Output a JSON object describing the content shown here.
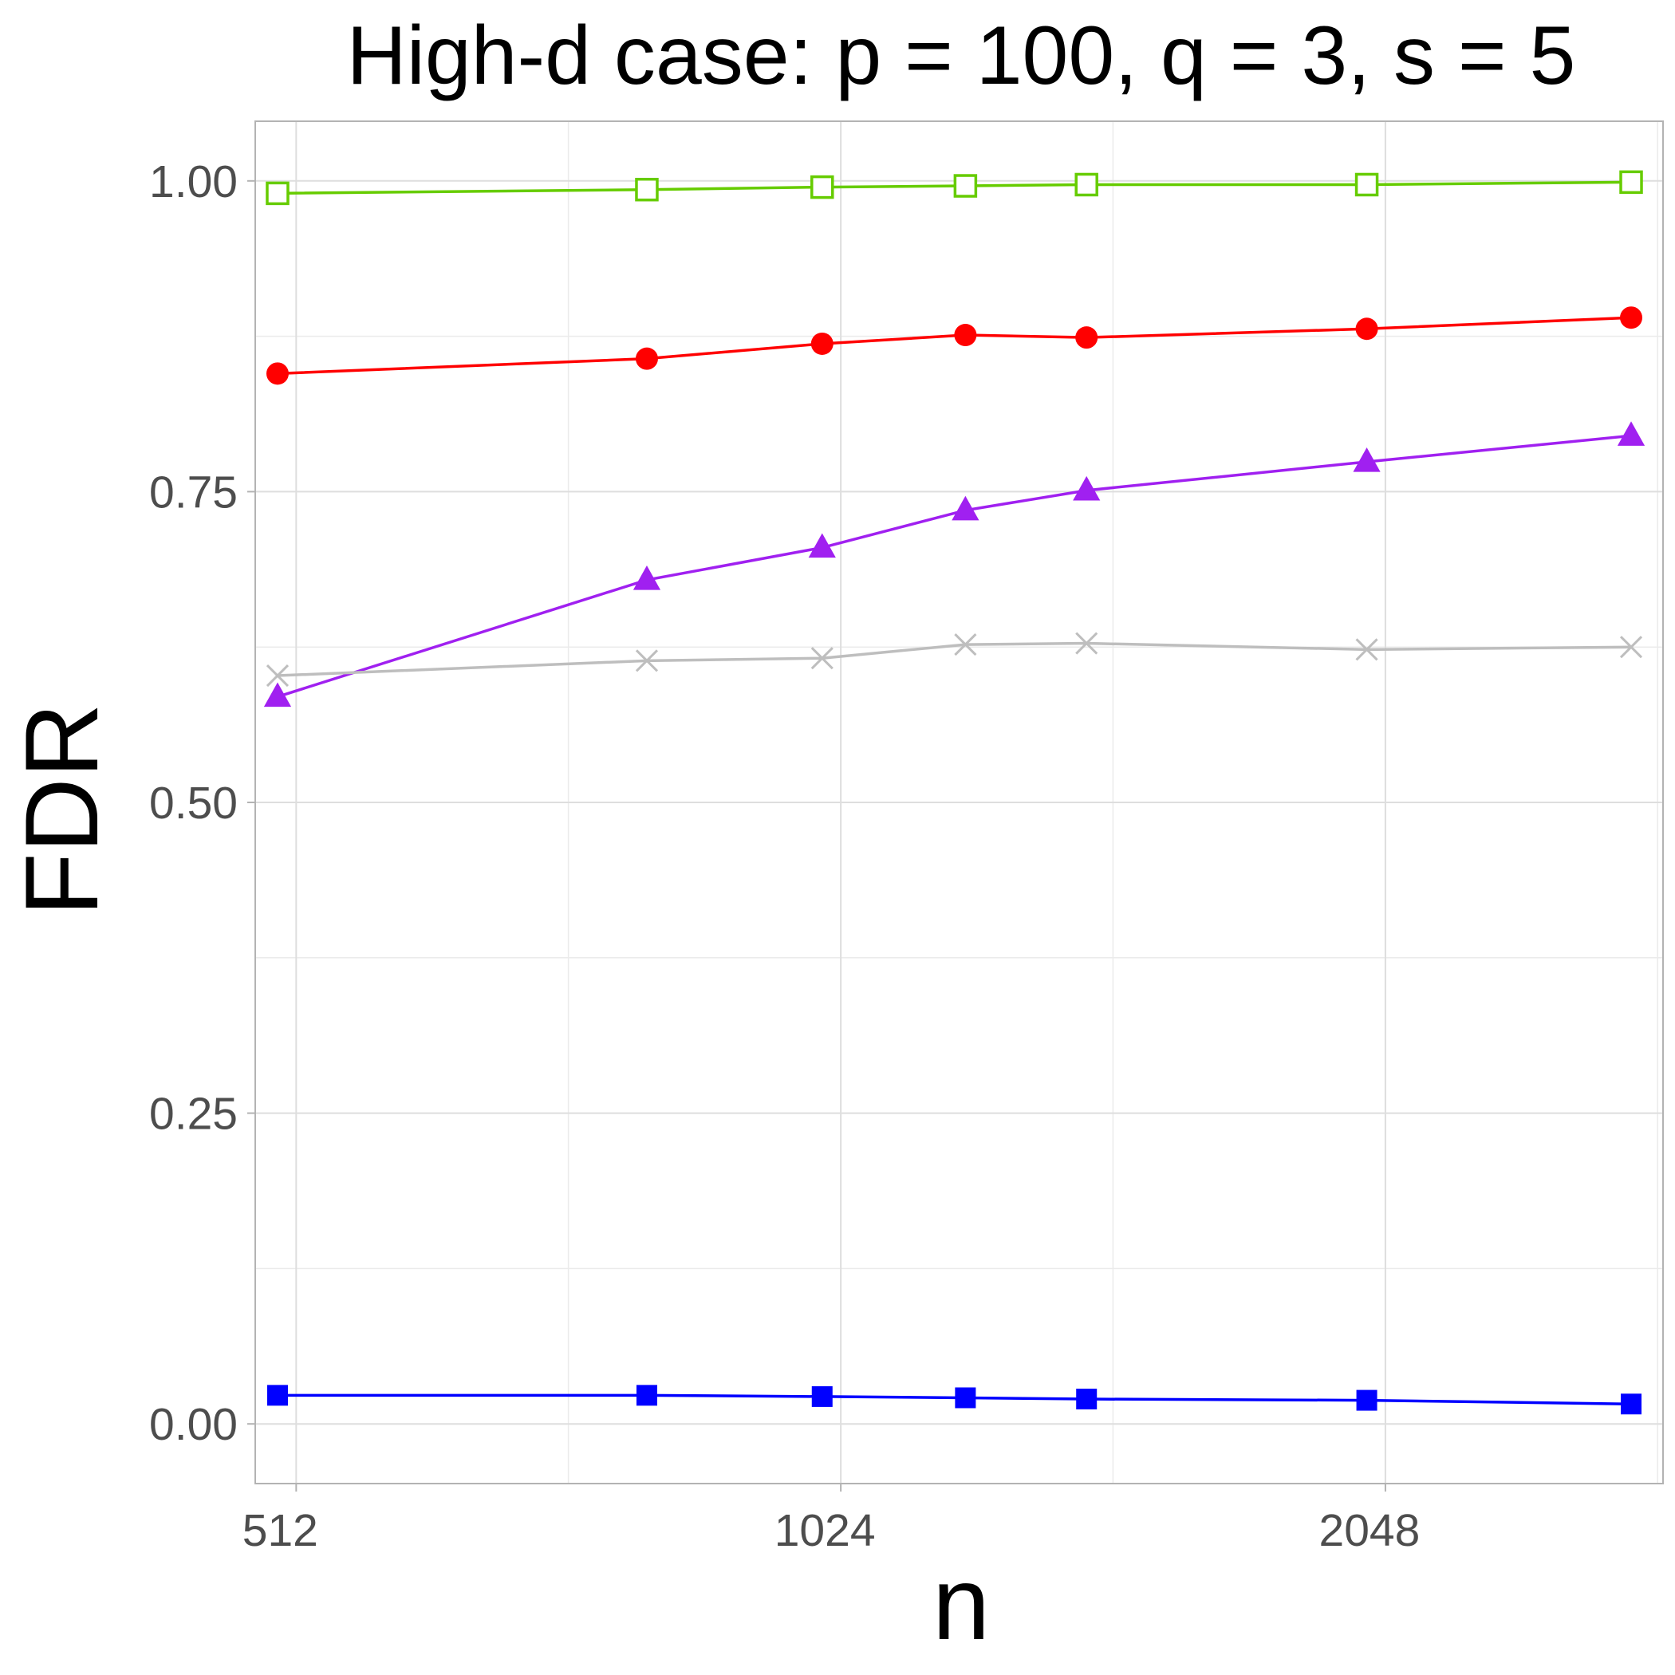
{
  "chart_data": {
    "type": "line",
    "title": "High-d case: p = 100, q = 3, s = 5",
    "xlabel": "n",
    "ylabel": "FDR",
    "x_scale": "log2",
    "x": [
      500,
      800,
      1000,
      1200,
      1400,
      2000,
      2800
    ],
    "xlim": [
      486,
      2916
    ],
    "x_ticks": [
      512,
      1024,
      2048
    ],
    "x_tick_labels": [
      "512",
      "1024",
      "2048"
    ],
    "x_minor_ticks": [
      724,
      1448,
      2896
    ],
    "ylim": [
      -0.048,
      1.048
    ],
    "y_ticks": [
      0,
      0.25,
      0.5,
      0.75,
      1.0
    ],
    "y_tick_labels": [
      "0.00",
      "0.25",
      "0.50",
      "0.75",
      "1.00"
    ],
    "y_minor_ticks": [
      0.125,
      0.375,
      0.625,
      0.875
    ],
    "grid": true,
    "legend": "none",
    "series": [
      {
        "color": "#66cc00",
        "marker": "open-square",
        "values": [
          0.99,
          0.993,
          0.995,
          0.996,
          0.997,
          0.997,
          0.999
        ]
      },
      {
        "color": "#ff0000",
        "marker": "filled-circle",
        "values": [
          0.845,
          0.857,
          0.869,
          0.876,
          0.874,
          0.881,
          0.89
        ]
      },
      {
        "color": "#a020f0",
        "marker": "filled-triangle",
        "values": [
          0.585,
          0.679,
          0.705,
          0.735,
          0.751,
          0.774,
          0.795
        ]
      },
      {
        "color": "#bebebe",
        "marker": "cross",
        "values": [
          0.602,
          0.614,
          0.616,
          0.627,
          0.628,
          0.623,
          0.625
        ]
      },
      {
        "color": "#0000ff",
        "marker": "filled-square",
        "values": [
          0.023,
          0.023,
          0.022,
          0.021,
          0.02,
          0.019,
          0.016
        ]
      }
    ]
  }
}
